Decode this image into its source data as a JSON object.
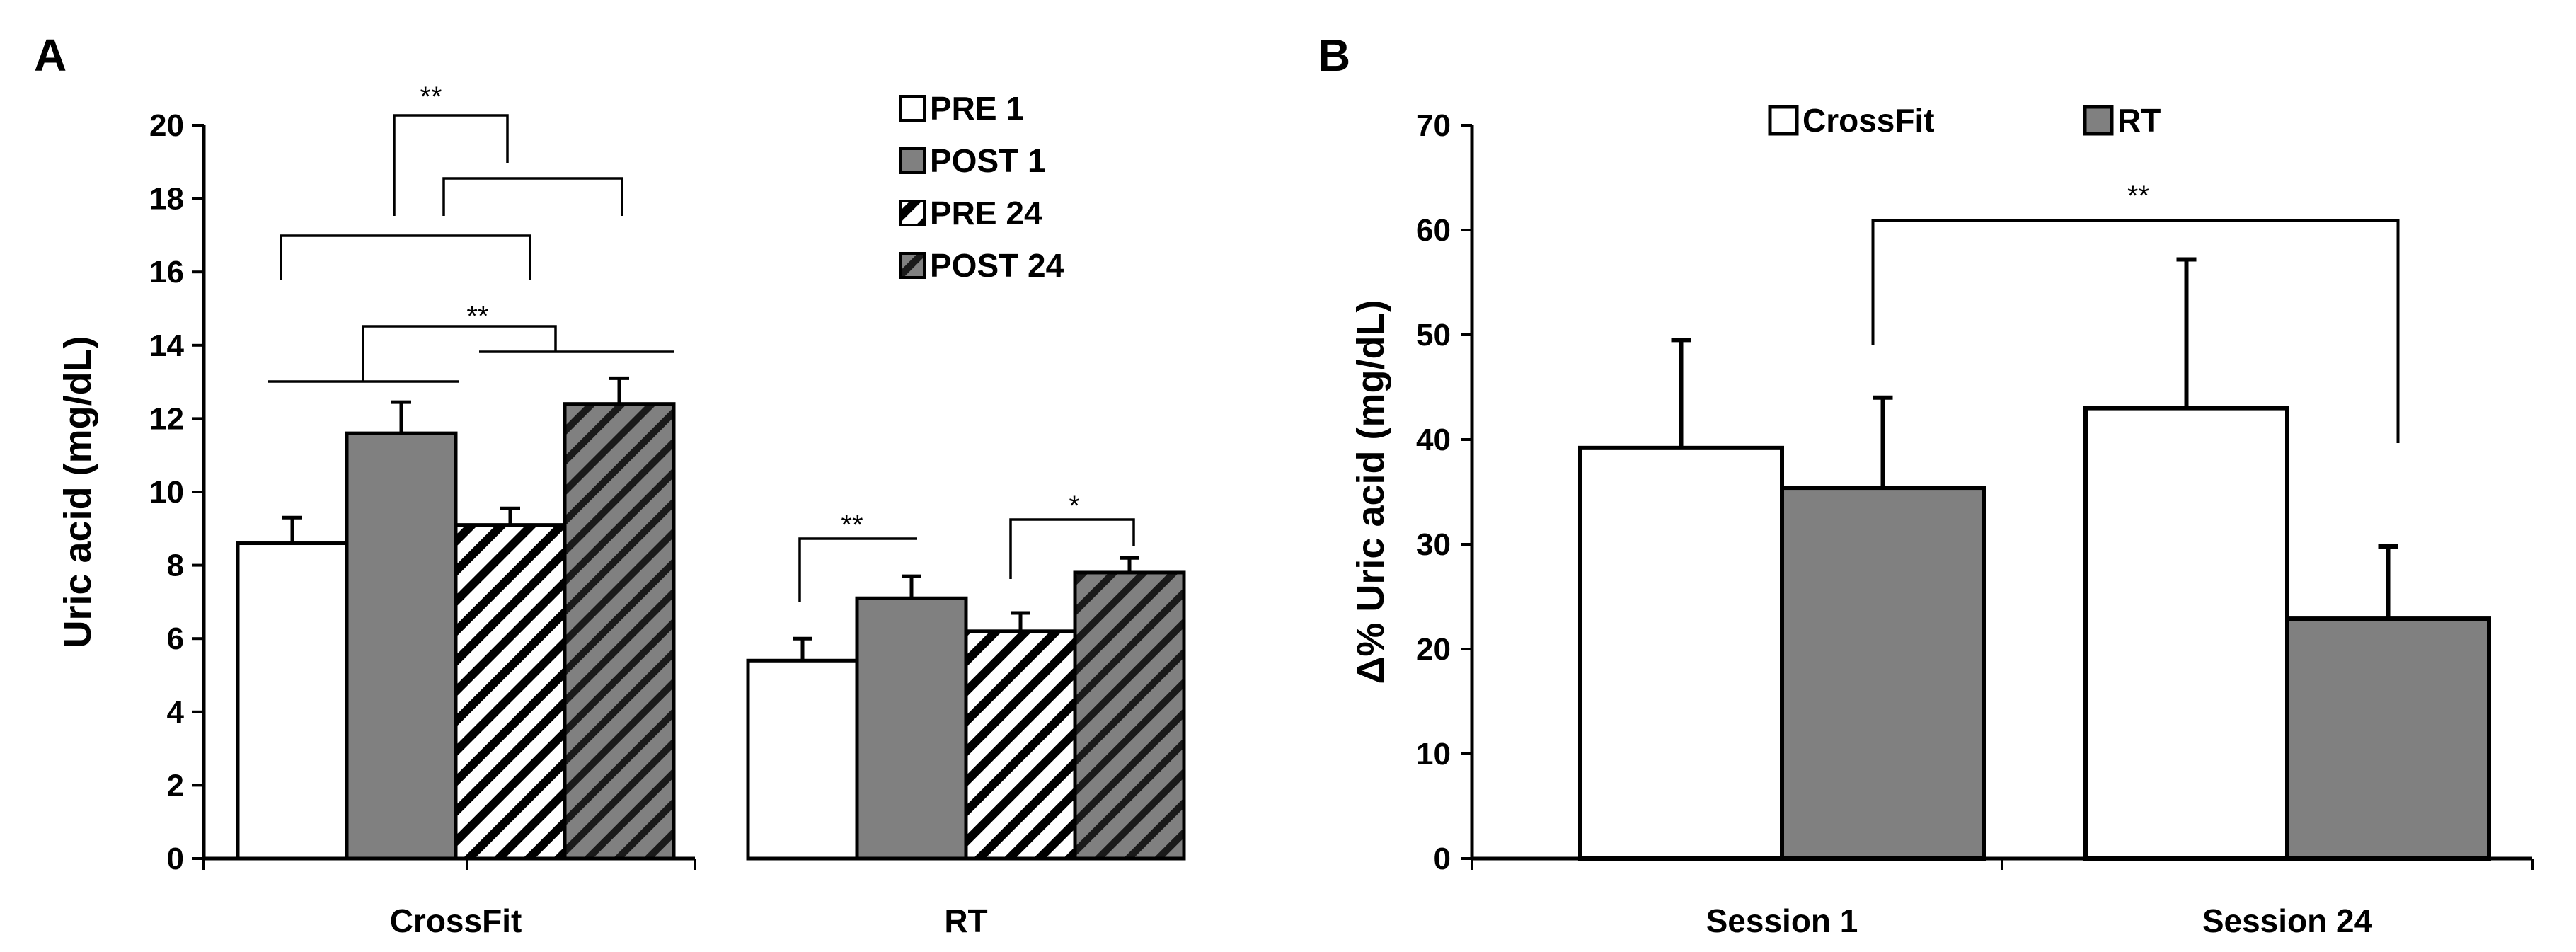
{
  "chart_data": [
    {
      "panel": "A",
      "type": "bar",
      "ylabel": "Uric acid  (mg/dL)",
      "xlabel": "",
      "ylim": [
        0,
        20
      ],
      "yticks": [
        0,
        2,
        4,
        6,
        8,
        10,
        12,
        14,
        16,
        18,
        20
      ],
      "categories": [
        "CrossFit",
        "RT"
      ],
      "series": [
        {
          "name": "PRE 1",
          "pattern": "white",
          "values": [
            8.6,
            5.4
          ],
          "errors": [
            0.7,
            0.6
          ]
        },
        {
          "name": "POST 1",
          "pattern": "gray",
          "values": [
            11.6,
            7.1
          ],
          "errors": [
            0.85,
            0.6
          ]
        },
        {
          "name": "PRE 24",
          "pattern": "white-hatch",
          "values": [
            9.1,
            6.2
          ],
          "errors": [
            0.45,
            0.5
          ]
        },
        {
          "name": "POST 24",
          "pattern": "gray-hatch",
          "values": [
            12.4,
            7.8
          ],
          "errors": [
            0.7,
            0.4
          ]
        }
      ],
      "significance": [
        "**",
        "**",
        "**",
        "*"
      ],
      "legend_position": "top-right"
    },
    {
      "panel": "B",
      "type": "bar",
      "ylabel": "Δ% Uric acid  (mg/dL)",
      "xlabel": "",
      "ylim": [
        0,
        70
      ],
      "yticks": [
        0,
        10,
        20,
        30,
        40,
        50,
        60,
        70
      ],
      "categories": [
        "Session 1",
        "Session 24"
      ],
      "series": [
        {
          "name": "CrossFit",
          "pattern": "white",
          "values": [
            39.2,
            43.0
          ],
          "errors": [
            10.3,
            14.2
          ]
        },
        {
          "name": "RT",
          "pattern": "gray",
          "values": [
            35.4,
            22.9
          ],
          "errors": [
            8.6,
            6.9
          ]
        }
      ],
      "significance": [
        "**"
      ],
      "legend_position": "top"
    }
  ],
  "colors": {
    "gray": "#808080",
    "white": "#ffffff",
    "stroke": "#000000"
  }
}
